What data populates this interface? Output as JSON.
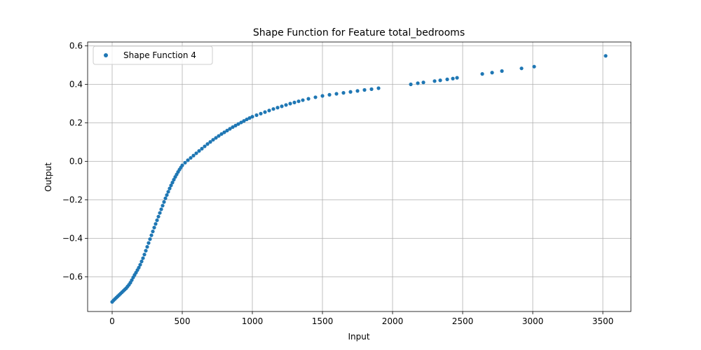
{
  "chart_data": {
    "type": "scatter",
    "title": "Shape Function for Feature total_bedrooms",
    "xlabel": "Input",
    "ylabel": "Output",
    "xlim": [
      -175,
      3700
    ],
    "ylim": [
      -0.78,
      0.62
    ],
    "xticks": [
      0,
      500,
      1000,
      1500,
      2000,
      2500,
      3000,
      3500
    ],
    "xtick_labels": [
      "0",
      "500",
      "1000",
      "1500",
      "2000",
      "2500",
      "3000",
      "3500"
    ],
    "yticks": [
      -0.6,
      -0.4,
      -0.2,
      0.0,
      0.2,
      0.4,
      0.6
    ],
    "ytick_labels": [
      "−0.6",
      "−0.4",
      "−0.2",
      "0.0",
      "0.2",
      "0.4",
      "0.6"
    ],
    "grid": true,
    "legend_position": "top-left",
    "color": "#1f77b4",
    "series": [
      {
        "name": "Shape Function 4",
        "points": [
          [
            0,
            -0.73
          ],
          [
            10,
            -0.722
          ],
          [
            20,
            -0.715
          ],
          [
            30,
            -0.708
          ],
          [
            40,
            -0.701
          ],
          [
            50,
            -0.694
          ],
          [
            60,
            -0.687
          ],
          [
            70,
            -0.68
          ],
          [
            80,
            -0.673
          ],
          [
            90,
            -0.666
          ],
          [
            100,
            -0.659
          ],
          [
            110,
            -0.65
          ],
          [
            120,
            -0.641
          ],
          [
            130,
            -0.63
          ],
          [
            140,
            -0.617
          ],
          [
            150,
            -0.603
          ],
          [
            160,
            -0.59
          ],
          [
            170,
            -0.578
          ],
          [
            180,
            -0.565
          ],
          [
            190,
            -0.552
          ],
          [
            200,
            -0.537
          ],
          [
            210,
            -0.52
          ],
          [
            220,
            -0.503
          ],
          [
            230,
            -0.484
          ],
          [
            240,
            -0.464
          ],
          [
            250,
            -0.444
          ],
          [
            260,
            -0.424
          ],
          [
            270,
            -0.404
          ],
          [
            280,
            -0.384
          ],
          [
            290,
            -0.364
          ],
          [
            300,
            -0.344
          ],
          [
            310,
            -0.325
          ],
          [
            320,
            -0.306
          ],
          [
            330,
            -0.287
          ],
          [
            340,
            -0.268
          ],
          [
            350,
            -0.249
          ],
          [
            360,
            -0.23
          ],
          [
            370,
            -0.211
          ],
          [
            380,
            -0.192
          ],
          [
            390,
            -0.175
          ],
          [
            400,
            -0.158
          ],
          [
            410,
            -0.141
          ],
          [
            420,
            -0.125
          ],
          [
            430,
            -0.11
          ],
          [
            440,
            -0.095
          ],
          [
            450,
            -0.081
          ],
          [
            460,
            -0.068
          ],
          [
            470,
            -0.055
          ],
          [
            480,
            -0.043
          ],
          [
            490,
            -0.032
          ],
          [
            500,
            -0.021
          ],
          [
            520,
            -0.007
          ],
          [
            540,
            0.006
          ],
          [
            560,
            0.018
          ],
          [
            580,
            0.03
          ],
          [
            600,
            0.042
          ],
          [
            620,
            0.054
          ],
          [
            640,
            0.066
          ],
          [
            660,
            0.078
          ],
          [
            680,
            0.09
          ],
          [
            700,
            0.101
          ],
          [
            720,
            0.112
          ],
          [
            740,
            0.122
          ],
          [
            760,
            0.132
          ],
          [
            780,
            0.142
          ],
          [
            800,
            0.151
          ],
          [
            820,
            0.16
          ],
          [
            840,
            0.169
          ],
          [
            860,
            0.178
          ],
          [
            880,
            0.186
          ],
          [
            900,
            0.194
          ],
          [
            920,
            0.202
          ],
          [
            940,
            0.21
          ],
          [
            960,
            0.218
          ],
          [
            980,
            0.225
          ],
          [
            1000,
            0.232
          ],
          [
            1030,
            0.24
          ],
          [
            1060,
            0.248
          ],
          [
            1090,
            0.256
          ],
          [
            1120,
            0.264
          ],
          [
            1150,
            0.272
          ],
          [
            1180,
            0.279
          ],
          [
            1210,
            0.286
          ],
          [
            1240,
            0.293
          ],
          [
            1270,
            0.3
          ],
          [
            1300,
            0.306
          ],
          [
            1330,
            0.312
          ],
          [
            1360,
            0.318
          ],
          [
            1400,
            0.325
          ],
          [
            1450,
            0.333
          ],
          [
            1500,
            0.34
          ],
          [
            1550,
            0.346
          ],
          [
            1600,
            0.351
          ],
          [
            1650,
            0.356
          ],
          [
            1700,
            0.361
          ],
          [
            1750,
            0.366
          ],
          [
            1800,
            0.371
          ],
          [
            1850,
            0.375
          ],
          [
            1900,
            0.38
          ],
          [
            2130,
            0.4
          ],
          [
            2180,
            0.406
          ],
          [
            2220,
            0.41
          ],
          [
            2300,
            0.417
          ],
          [
            2340,
            0.421
          ],
          [
            2390,
            0.426
          ],
          [
            2430,
            0.43
          ],
          [
            2460,
            0.434
          ],
          [
            2640,
            0.454
          ],
          [
            2710,
            0.461
          ],
          [
            2780,
            0.469
          ],
          [
            2920,
            0.483
          ],
          [
            3010,
            0.492
          ],
          [
            3520,
            0.548
          ]
        ]
      }
    ]
  }
}
